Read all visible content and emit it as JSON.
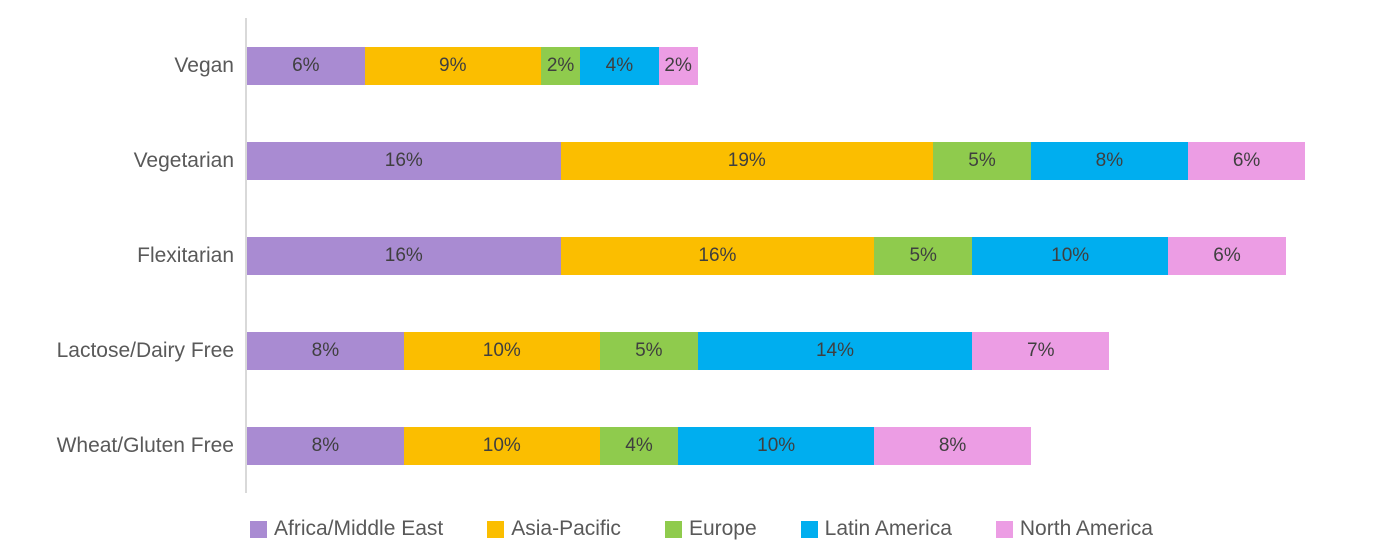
{
  "chart_data": {
    "type": "bar",
    "orientation": "horizontal",
    "stacked": true,
    "title": "",
    "xlabel": "",
    "ylabel": "",
    "grid": false,
    "legend_position": "bottom",
    "value_suffix": "%",
    "axis_color": "#d9d9d9",
    "category_label_color": "#595959",
    "data_label_color": "#3f3f3f",
    "categories": [
      "Vegan",
      "Vegetarian",
      "Flexitarian",
      "Lactose/Dairy Free",
      "Wheat/Gluten Free"
    ],
    "series": [
      {
        "name": "Africa/Middle East",
        "color": "#a98bd2",
        "values": [
          6,
          16,
          16,
          8,
          8
        ]
      },
      {
        "name": "Asia-Pacific",
        "color": "#fbbe00",
        "values": [
          9,
          19,
          16,
          10,
          10
        ]
      },
      {
        "name": "Europe",
        "color": "#8fcb4d",
        "values": [
          2,
          5,
          5,
          5,
          4
        ]
      },
      {
        "name": "Latin America",
        "color": "#00aeef",
        "values": [
          4,
          8,
          10,
          14,
          10
        ]
      },
      {
        "name": "North America",
        "color": "#ec9de4",
        "values": [
          2,
          6,
          6,
          7,
          8
        ]
      }
    ]
  }
}
